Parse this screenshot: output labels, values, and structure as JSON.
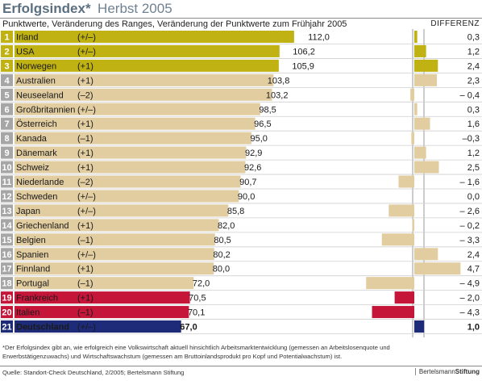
{
  "header": {
    "title": "Erfolgsindex*",
    "subtitle_term": "Herbst 2005",
    "description": "Punktwerte, Veränderung des Ranges, Veränderung der Punktwerte zum Frühjahr 2005",
    "diff_header": "DIFFERENZ"
  },
  "colors": {
    "olive": "#c0b213",
    "tan": "#e2cda1",
    "red": "#c5163a",
    "navy": "#1d2b78",
    "gray_rank": "#a6a6a6",
    "rank_top": "#c0b213"
  },
  "chart_data": {
    "type": "bar",
    "series": [
      {
        "name": "Punktwerte",
        "values": [
          112.0,
          106.2,
          105.9,
          103.8,
          103.2,
          98.5,
          96.5,
          95.0,
          92.9,
          92.6,
          90.7,
          90.0,
          85.8,
          82.0,
          80.5,
          80.2,
          80.0,
          72.0,
          70.5,
          70.1,
          67.0
        ]
      },
      {
        "name": "Differenz",
        "values": [
          0.3,
          1.2,
          2.4,
          2.3,
          -0.4,
          0.3,
          1.6,
          -0.3,
          1.2,
          2.5,
          -1.6,
          0.0,
          -2.6,
          -0.2,
          -3.3,
          2.4,
          4.7,
          -4.9,
          -2.0,
          -4.3,
          1.0
        ]
      }
    ],
    "rows": [
      {
        "rank": "1",
        "country": "Irland",
        "rank_change": "(+/–)",
        "score": "112,0",
        "diff": "0,3",
        "group": "olive"
      },
      {
        "rank": "2",
        "country": "USA",
        "rank_change": "(+/–)",
        "score": "106,2",
        "diff": "1,2",
        "group": "olive"
      },
      {
        "rank": "3",
        "country": "Norwegen",
        "rank_change": "(+1)",
        "score": "105,9",
        "diff": "2,4",
        "group": "olive"
      },
      {
        "rank": "4",
        "country": "Australien",
        "rank_change": "(+1)",
        "score": "103,8",
        "diff": "2,3",
        "group": "tan"
      },
      {
        "rank": "5",
        "country": "Neuseeland",
        "rank_change": "(–2)",
        "score": "103,2",
        "diff": "– 0,4",
        "group": "tan"
      },
      {
        "rank": "6",
        "country": "Großbritannien",
        "rank_change": "(+/–)",
        "score": "98,5",
        "diff": "0,3",
        "group": "tan"
      },
      {
        "rank": "7",
        "country": "Österreich",
        "rank_change": "(+1)",
        "score": "96,5",
        "diff": "1,6",
        "group": "tan"
      },
      {
        "rank": "8",
        "country": "Kanada",
        "rank_change": "(–1)",
        "score": "95,0",
        "diff": "–0,3",
        "group": "tan"
      },
      {
        "rank": "9",
        "country": "Dänemark",
        "rank_change": "(+1)",
        "score": "92,9",
        "diff": "1,2",
        "group": "tan"
      },
      {
        "rank": "10",
        "country": "Schweiz",
        "rank_change": "(+1)",
        "score": "92,6",
        "diff": "2,5",
        "group": "tan"
      },
      {
        "rank": "11",
        "country": "Niederlande",
        "rank_change": "(–2)",
        "score": "90,7",
        "diff": "– 1,6",
        "group": "tan"
      },
      {
        "rank": "12",
        "country": "Schweden",
        "rank_change": "(+/–)",
        "score": "90,0",
        "diff": "0,0",
        "group": "tan"
      },
      {
        "rank": "13",
        "country": "Japan",
        "rank_change": "(+/–)",
        "score": "85,8",
        "diff": "– 2,6",
        "group": "tan"
      },
      {
        "rank": "14",
        "country": "Griechenland",
        "rank_change": "(+1)",
        "score": "82,0",
        "diff": "– 0,2",
        "group": "tan"
      },
      {
        "rank": "15",
        "country": "Belgien",
        "rank_change": "(–1)",
        "score": "80,5",
        "diff": "– 3,3",
        "group": "tan"
      },
      {
        "rank": "16",
        "country": "Spanien",
        "rank_change": "(+/–)",
        "score": "80,2",
        "diff": "2,4",
        "group": "tan"
      },
      {
        "rank": "17",
        "country": "Finnland",
        "rank_change": "(+1)",
        "score": "80,0",
        "diff": "4,7",
        "group": "tan"
      },
      {
        "rank": "18",
        "country": "Portugal",
        "rank_change": "(–1)",
        "score": "72,0",
        "diff": "– 4,9",
        "group": "tan"
      },
      {
        "rank": "19",
        "country": "Frankreich",
        "rank_change": "(+1)",
        "score": "70,5",
        "diff": "– 2,0",
        "group": "red"
      },
      {
        "rank": "20",
        "country": "Italien",
        "rank_change": "(–1)",
        "score": "70,1",
        "diff": "– 4,3",
        "group": "red"
      },
      {
        "rank": "21",
        "country": "Deutschland",
        "rank_change": "(+/–)",
        "score": "67,0",
        "diff": "1,0",
        "group": "navy"
      }
    ]
  },
  "footnote": "*Der Erfolgsindex gibt an, wie erfolgreich eine Volkswirtschaft aktuell hinsichtlich Arbeitsmarktentwicklung (gemessen an Arbeitslosenquote und Erwerbstätigenzuwachs) und Wirtschaftswachstum (gemessen am Bruttoinlandsprodukt pro Kopf und Potentialwachstum) ist.",
  "source": "Quelle: Standort-Check Deutschland, 2/2005; Bertelsmann Stiftung",
  "brand_regular": "Bertelsmann",
  "brand_bold": "Stiftung"
}
